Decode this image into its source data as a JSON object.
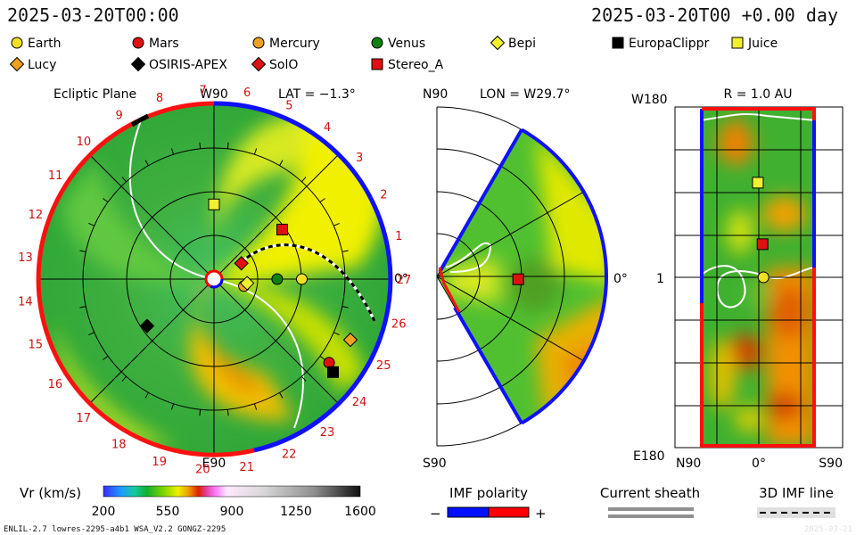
{
  "header": {
    "date_left": "2025-03-20T00:00",
    "date_right": "2025-03-20T00 +0.00 day"
  },
  "legend": {
    "items": [
      {
        "name": "Earth",
        "shape": "circle",
        "color": "#f0e020"
      },
      {
        "name": "Mars",
        "shape": "circle",
        "color": "#e01010"
      },
      {
        "name": "Mercury",
        "shape": "circle",
        "color": "#f0a020"
      },
      {
        "name": "Venus",
        "shape": "circle",
        "color": "#108010"
      },
      {
        "name": "Bepi",
        "shape": "diamond",
        "color": "#f0f030"
      },
      {
        "name": "EuropaClippr",
        "shape": "square",
        "color": "#000000"
      },
      {
        "name": "Juice",
        "shape": "square",
        "color": "#f0f030"
      },
      {
        "name": "Lucy",
        "shape": "diamond",
        "color": "#f0a020"
      },
      {
        "name": "OSIRIS-APEX",
        "shape": "diamond",
        "color": "#000000"
      },
      {
        "name": "SolO",
        "shape": "diamond",
        "color": "#e01010"
      },
      {
        "name": "Stereo_A",
        "shape": "square",
        "color": "#e01010"
      }
    ]
  },
  "panels": {
    "ecliptic": {
      "title": "Ecliptic Plane",
      "top_label": "W90",
      "bottom_label": "E90",
      "right_label": "0°",
      "lat_label": "LAT = −1.3°",
      "sector_numbers": [
        "27",
        "1",
        "2",
        "3",
        "4",
        "5",
        "6",
        "7",
        "8",
        "9",
        "10",
        "11",
        "12",
        "13",
        "14",
        "15",
        "16",
        "17",
        "18",
        "19",
        "20",
        "21",
        "22",
        "23",
        "24",
        "25",
        "26"
      ]
    },
    "meridional": {
      "top_label": "N90",
      "bottom_label": "S90",
      "right_label": "0°",
      "lon_label": "LON = W29.7°"
    },
    "shell": {
      "radius_label": "R = 1.0 AU",
      "top_label": "W180",
      "bottom_label": "E180",
      "mid_label": "1",
      "x_left": "N90",
      "x_mid": "0°",
      "x_right": "S90"
    }
  },
  "colorbar": {
    "label": "Vr (km/s)",
    "ticks": [
      "200",
      "550",
      "900",
      "1250",
      "1600"
    ]
  },
  "imf_legend": {
    "title": "IMF polarity",
    "minus": "−",
    "plus": "+",
    "neg_color": "#0010ff",
    "pos_color": "#ff0000"
  },
  "sheath_legend": {
    "title": "Current sheath"
  },
  "imf3d_legend": {
    "title": "3D IMF line"
  },
  "footer": {
    "left": "ENLIL-2.7 lowres-2295-a4b1 WSA_V2.2 GONGZ-2295",
    "right": "2025-03-21"
  },
  "chart_data": [
    {
      "type": "polar",
      "title": "Ecliptic Plane",
      "quantity": "Vr (km/s)",
      "value_range": [
        200,
        1600
      ],
      "latitude": "−1.3°",
      "objects": [
        {
          "name": "Earth",
          "r_au": 1.0,
          "lon_deg": 0
        },
        {
          "name": "Venus",
          "r_au": 0.72,
          "lon_deg": 0
        },
        {
          "name": "Mercury",
          "r_au": 0.35,
          "lon_deg": -13
        },
        {
          "name": "Bepi",
          "r_au": 0.38,
          "lon_deg": -7
        },
        {
          "name": "SolO",
          "r_au": 0.36,
          "lon_deg": 30
        },
        {
          "name": "Stereo_A",
          "r_au": 0.96,
          "lon_deg": 36
        },
        {
          "name": "Juice",
          "r_au": 0.85,
          "lon_deg": 90
        },
        {
          "name": "OSIRIS-APEX",
          "r_au": 0.93,
          "lon_deg": -145
        },
        {
          "name": "Lucy",
          "r_au": 1.7,
          "lon_deg": -24
        },
        {
          "name": "Mars",
          "r_au": 1.62,
          "lon_deg": -36
        },
        {
          "name": "EuropaClippr",
          "r_au": 1.72,
          "lon_deg": -38
        }
      ]
    },
    {
      "type": "polar",
      "title": "LON = W29.7°",
      "objects": [
        {
          "name": "Stereo_A",
          "r_au": 0.96,
          "lat_deg": -2
        }
      ]
    },
    {
      "type": "heatmap",
      "title": "R = 1.0 AU",
      "x_range": [
        "N90",
        "S90"
      ],
      "y_range": [
        "E180",
        "W180"
      ],
      "objects": [
        {
          "name": "Juice",
          "lat_deg": 1,
          "lon_deg": 100
        },
        {
          "name": "Stereo_A",
          "lat_deg": -4,
          "lon_deg": 35
        },
        {
          "name": "Earth",
          "lat_deg": -5,
          "lon_deg": 0
        }
      ]
    }
  ]
}
